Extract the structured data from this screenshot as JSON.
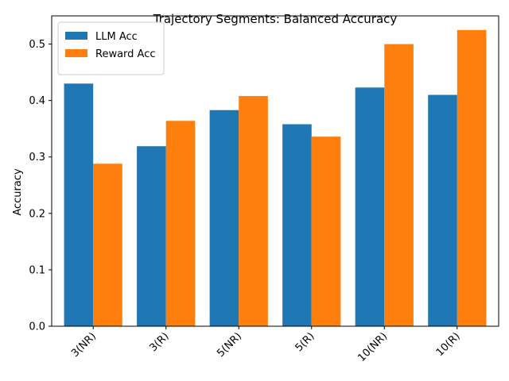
{
  "chart_data": {
    "type": "bar",
    "title": "Trajectory Segments: Balanced Accuracy",
    "xlabel": "",
    "ylabel": "Accuracy",
    "categories": [
      "3(NR)",
      "3(R)",
      "5(NR)",
      "5(R)",
      "10(NR)",
      "10(R)"
    ],
    "series": [
      {
        "name": "LLM Acc",
        "color": "#1f77b4",
        "values": [
          0.43,
          0.319,
          0.383,
          0.358,
          0.423,
          0.41
        ]
      },
      {
        "name": "Reward Acc",
        "color": "#ff7f0e",
        "values": [
          0.288,
          0.364,
          0.408,
          0.336,
          0.5,
          0.525
        ]
      }
    ],
    "ylim": [
      0,
      0.55
    ],
    "yticks": [
      0.0,
      0.1,
      0.2,
      0.3,
      0.4,
      0.5
    ],
    "ytick_labels": [
      "0.0",
      "0.1",
      "0.2",
      "0.3",
      "0.4",
      "0.5"
    ],
    "grid": false,
    "legend": "upper-left"
  }
}
